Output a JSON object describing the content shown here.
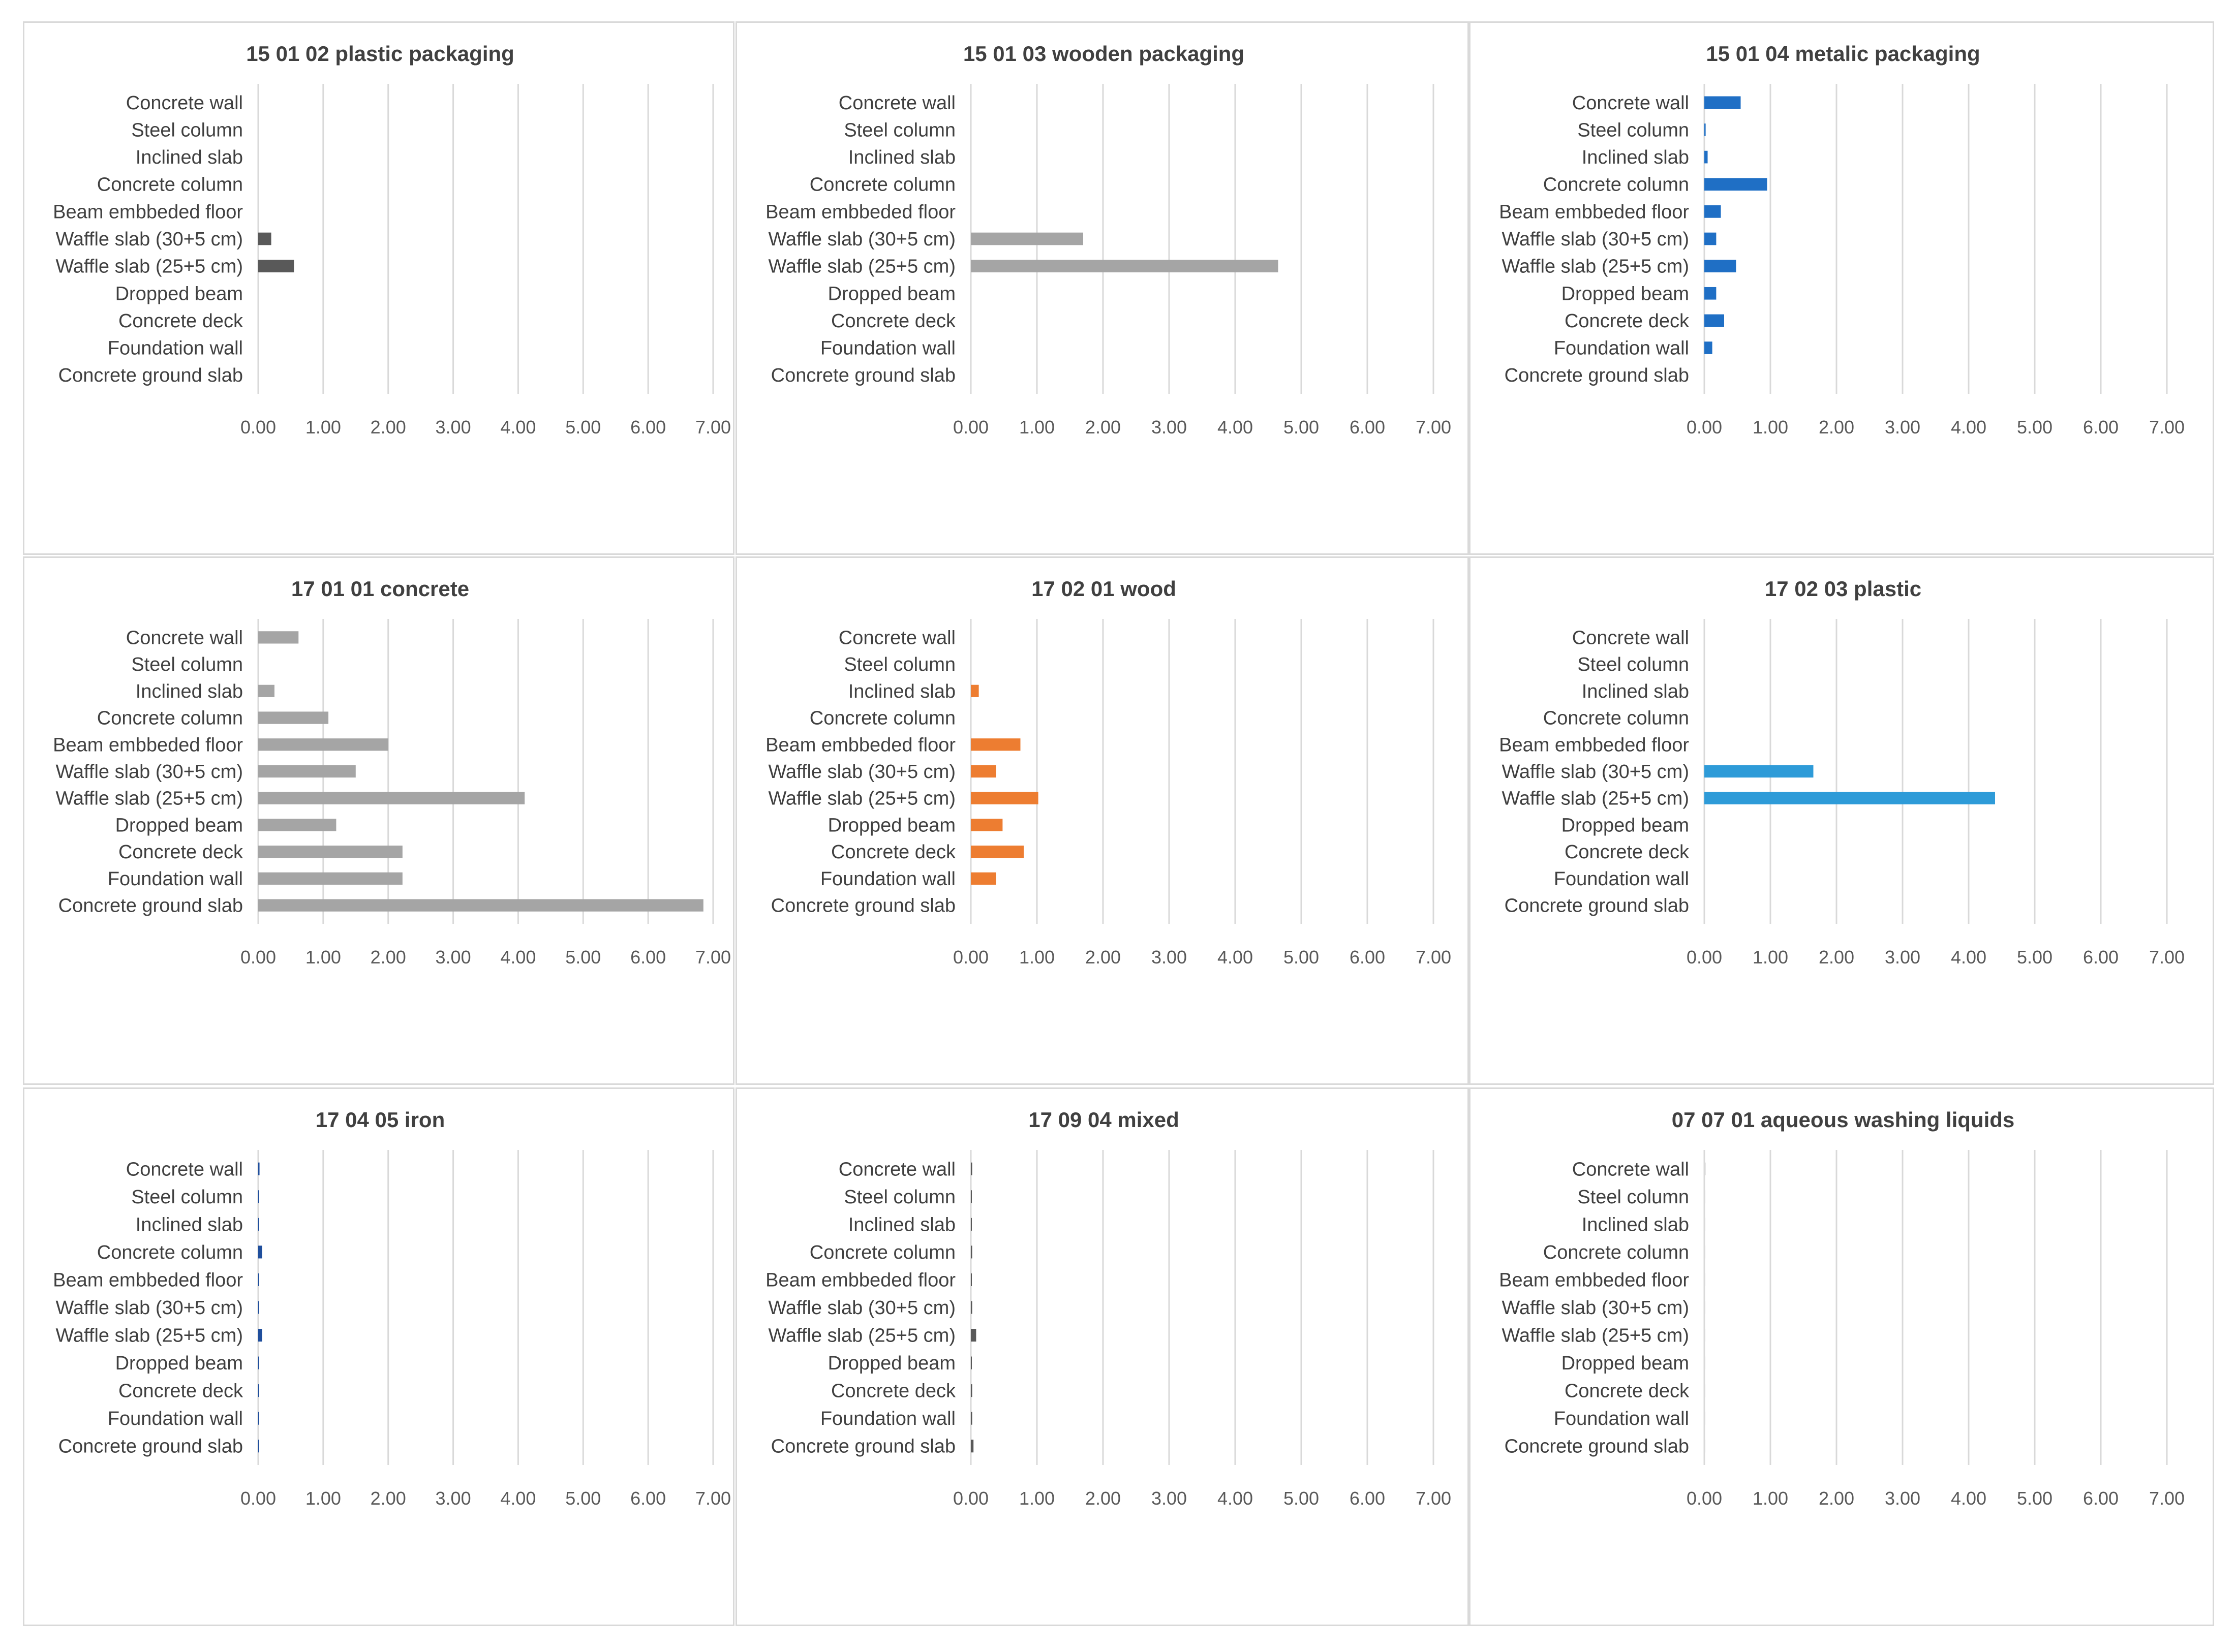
{
  "chart_data": [
    {
      "type": "bar",
      "title": "15 01 02 plastic packaging",
      "categories": [
        "Concrete wall",
        "Steel column",
        "Inclined slab",
        "Concrete column",
        "Beam embbeded floor",
        "Waffle slab  (30+5 cm)",
        "Waffle slab  (25+5 cm)",
        "Dropped beam",
        "Concrete deck",
        "Foundation wall",
        "Concrete ground slab"
      ],
      "values": [
        0,
        0,
        0,
        0,
        0,
        0.2,
        0.55,
        0,
        0,
        0,
        0
      ],
      "xlim": [
        0,
        7
      ],
      "ticks": [
        "0.00",
        "1.00",
        "2.00",
        "3.00",
        "4.00",
        "5.00",
        "6.00",
        "7.00"
      ],
      "color": "#595959"
    },
    {
      "type": "bar",
      "title": "15 01 03 wooden packaging",
      "categories": [
        "Concrete wall",
        "Steel column",
        "Inclined slab",
        "Concrete column",
        "Beam embbeded floor",
        "Waffle slab  (30+5 cm)",
        "Waffle slab  (25+5 cm)",
        "Dropped beam",
        "Concrete deck",
        "Foundation wall",
        "Concrete ground slab"
      ],
      "values": [
        0,
        0,
        0,
        0,
        0,
        1.7,
        4.65,
        0,
        0,
        0,
        0
      ],
      "xlim": [
        0,
        7
      ],
      "ticks": [
        "0.00",
        "1.00",
        "2.00",
        "3.00",
        "4.00",
        "5.00",
        "6.00",
        "7.00"
      ],
      "color": "#a5a5a5"
    },
    {
      "type": "bar",
      "title": "15 01 04 metalic packaging",
      "categories": [
        "Concrete wall",
        "Steel column",
        "Inclined slab",
        "Concrete column",
        "Beam embbeded floor",
        "Waffle slab  (30+5 cm)",
        "Waffle slab  (25+5 cm)",
        "Dropped beam",
        "Concrete deck",
        "Foundation wall",
        "Concrete ground slab"
      ],
      "values": [
        0.55,
        0.02,
        0.05,
        0.95,
        0.25,
        0.18,
        0.48,
        0.18,
        0.3,
        0.12,
        0
      ],
      "xlim": [
        0,
        7
      ],
      "ticks": [
        "0.00",
        "1.00",
        "2.00",
        "3.00",
        "4.00",
        "5.00",
        "6.00",
        "7.00"
      ],
      "color": "#1f6fc5"
    },
    {
      "type": "bar",
      "title": "17 01 01 concrete",
      "categories": [
        "Concrete wall",
        "Steel column",
        "Inclined slab",
        "Concrete column",
        "Beam embbeded floor",
        "Waffle slab  (30+5 cm)",
        "Waffle slab  (25+5 cm)",
        "Dropped beam",
        "Concrete deck",
        "Foundation wall",
        "Concrete ground slab"
      ],
      "values": [
        0.62,
        0,
        0.25,
        1.08,
        2.0,
        1.5,
        4.1,
        1.2,
        2.22,
        2.22,
        6.85
      ],
      "xlim": [
        0,
        7
      ],
      "ticks": [
        "0.00",
        "1.00",
        "2.00",
        "3.00",
        "4.00",
        "5.00",
        "6.00",
        "7.00"
      ],
      "color": "#a5a5a5"
    },
    {
      "type": "bar",
      "title": "17 02 01 wood",
      "categories": [
        "Concrete wall",
        "Steel column",
        "Inclined slab",
        "Concrete column",
        "Beam embbeded floor",
        "Waffle slab  (30+5 cm)",
        "Waffle slab  (25+5 cm)",
        "Dropped beam",
        "Concrete deck",
        "Foundation wall",
        "Concrete ground slab"
      ],
      "values": [
        0,
        0,
        0.12,
        0,
        0.75,
        0.38,
        1.02,
        0.48,
        0.8,
        0.38,
        0
      ],
      "xlim": [
        0,
        7
      ],
      "ticks": [
        "0.00",
        "1.00",
        "2.00",
        "3.00",
        "4.00",
        "5.00",
        "6.00",
        "7.00"
      ],
      "color": "#ed7d31"
    },
    {
      "type": "bar",
      "title": "17 02 03 plastic",
      "categories": [
        "Concrete wall",
        "Steel column",
        "Inclined slab",
        "Concrete column",
        "Beam embbeded floor",
        "Waffle slab  (30+5 cm)",
        "Waffle slab  (25+5 cm)",
        "Dropped beam",
        "Concrete deck",
        "Foundation wall",
        "Concrete ground slab"
      ],
      "values": [
        0,
        0,
        0,
        0,
        0,
        1.65,
        4.4,
        0,
        0,
        0,
        0
      ],
      "xlim": [
        0,
        7
      ],
      "ticks": [
        "0.00",
        "1.00",
        "2.00",
        "3.00",
        "4.00",
        "5.00",
        "6.00",
        "7.00"
      ],
      "color": "#2e9bd8"
    },
    {
      "type": "bar",
      "title": "17 04 05 iron",
      "categories": [
        "Concrete wall",
        "Steel column",
        "Inclined slab",
        "Concrete column",
        "Beam embbeded floor",
        "Waffle slab  (30+5 cm)",
        "Waffle slab  (25+5 cm)",
        "Dropped beam",
        "Concrete deck",
        "Foundation wall",
        "Concrete ground slab"
      ],
      "values": [
        0.02,
        0.01,
        0.01,
        0.06,
        0.01,
        0.01,
        0.06,
        0.01,
        0.01,
        0.01,
        0.01
      ],
      "xlim": [
        0,
        7
      ],
      "ticks": [
        "0.00",
        "1.00",
        "2.00",
        "3.00",
        "4.00",
        "5.00",
        "6.00",
        "7.00"
      ],
      "color": "#1f4e9c"
    },
    {
      "type": "bar",
      "title": "17 09 04 mixed",
      "categories": [
        "Concrete wall",
        "Steel column",
        "Inclined slab",
        "Concrete column",
        "Beam embbeded floor",
        "Waffle slab  (30+5 cm)",
        "Waffle slab  (25+5 cm)",
        "Dropped beam",
        "Concrete deck",
        "Foundation wall",
        "Concrete ground slab"
      ],
      "values": [
        0.02,
        0.01,
        0.01,
        0.02,
        0.01,
        0.02,
        0.08,
        0.01,
        0.02,
        0.02,
        0.04
      ],
      "xlim": [
        0,
        7
      ],
      "ticks": [
        "0.00",
        "1.00",
        "2.00",
        "3.00",
        "4.00",
        "5.00",
        "6.00",
        "7.00"
      ],
      "color": "#595959"
    },
    {
      "type": "bar",
      "title": "07 07 01 aqueous washing liquids",
      "categories": [
        "Concrete wall",
        "Steel column",
        "Inclined slab",
        "Concrete column",
        "Beam embbeded floor",
        "Waffle slab  (30+5 cm)",
        "Waffle slab  (25+5 cm)",
        "Dropped beam",
        "Concrete deck",
        "Foundation wall",
        "Concrete ground slab"
      ],
      "values": [
        0.02,
        0.01,
        0.01,
        0.01,
        0.01,
        0.01,
        0.01,
        0.01,
        0.01,
        0.01,
        0.01
      ],
      "xlim": [
        0,
        7
      ],
      "ticks": [
        "0.00",
        "1.00",
        "2.00",
        "3.00",
        "4.00",
        "5.00",
        "6.00",
        "7.00"
      ],
      "color": "#d9d9d9"
    }
  ]
}
